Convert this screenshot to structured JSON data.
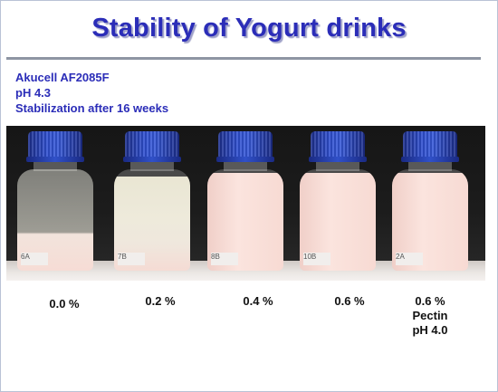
{
  "title": "Stability of Yogurt drinks",
  "subtitle": {
    "line1": "Akucell AF2085F",
    "line2": "pH 4.3",
    "line3": "Stabilization after 16 weeks"
  },
  "samples": [
    {
      "label": "0.0 %",
      "extra1": "",
      "extra2": ""
    },
    {
      "label": "0.2 %",
      "extra1": "",
      "extra2": ""
    },
    {
      "label": "0.4 %",
      "extra1": "",
      "extra2": ""
    },
    {
      "label": "0.6 %",
      "extra1": "",
      "extra2": ""
    },
    {
      "label": "0.6 %",
      "extra1": "Pectin",
      "extra2": "pH 4.0"
    }
  ],
  "colors": {
    "title": "#2b2db8",
    "cap": "#2f4fd0",
    "yogurt": "#f7d9d3"
  },
  "icons": [
    "bottle-icon"
  ]
}
